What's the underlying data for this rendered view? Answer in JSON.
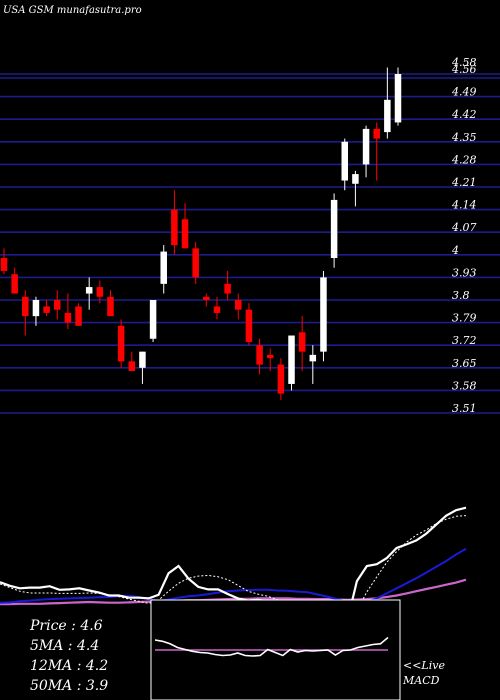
{
  "chart_data": {
    "type": "candlestick",
    "title": "USA GSM munafasutra.pro",
    "price_ticks": [
      4.58,
      4.56,
      4.49,
      4.42,
      4.35,
      4.28,
      4.21,
      4.14,
      4.07,
      4,
      3.93,
      3.8,
      3.79,
      3.72,
      3.65,
      3.58,
      3.51
    ],
    "candles": [
      {
        "open": 3.99,
        "high": 4.02,
        "low": 3.94,
        "close": 3.95
      },
      {
        "open": 3.94,
        "high": 3.96,
        "low": 3.88,
        "close": 3.88
      },
      {
        "open": 3.87,
        "high": 3.89,
        "low": 3.75,
        "close": 3.81
      },
      {
        "open": 3.81,
        "high": 3.87,
        "low": 3.78,
        "close": 3.86
      },
      {
        "open": 3.84,
        "high": 3.86,
        "low": 3.81,
        "close": 3.82
      },
      {
        "open": 3.86,
        "high": 3.89,
        "low": 3.8,
        "close": 3.83
      },
      {
        "open": 3.82,
        "high": 3.88,
        "low": 3.77,
        "close": 3.79
      },
      {
        "open": 3.84,
        "high": 3.85,
        "low": 3.78,
        "close": 3.78
      },
      {
        "open": 3.88,
        "high": 3.93,
        "low": 3.83,
        "close": 3.9
      },
      {
        "open": 3.9,
        "high": 3.92,
        "low": 3.85,
        "close": 3.87
      },
      {
        "open": 3.87,
        "high": 3.89,
        "low": 3.82,
        "close": 3.81
      },
      {
        "open": 3.78,
        "high": 3.8,
        "low": 3.65,
        "close": 3.67
      },
      {
        "open": 3.67,
        "high": 3.7,
        "low": 3.64,
        "close": 3.64
      },
      {
        "open": 3.65,
        "high": 3.7,
        "low": 3.6,
        "close": 3.7
      },
      {
        "open": 3.74,
        "high": 3.86,
        "low": 3.73,
        "close": 3.86
      },
      {
        "open": 3.91,
        "high": 4.03,
        "low": 3.88,
        "close": 4.01
      },
      {
        "open": 4.14,
        "high": 4.2,
        "low": 4.0,
        "close": 4.03
      },
      {
        "open": 4.11,
        "high": 4.16,
        "low": 4.02,
        "close": 4.02
      },
      {
        "open": 4.02,
        "high": 4.04,
        "low": 3.91,
        "close": 3.93
      },
      {
        "open": 3.87,
        "high": 3.88,
        "low": 3.84,
        "close": 3.86
      },
      {
        "open": 3.84,
        "high": 3.87,
        "low": 3.8,
        "close": 3.82
      },
      {
        "open": 3.91,
        "high": 3.95,
        "low": 3.86,
        "close": 3.88
      },
      {
        "open": 3.86,
        "high": 3.88,
        "low": 3.8,
        "close": 3.83
      },
      {
        "open": 3.83,
        "high": 3.85,
        "low": 3.72,
        "close": 3.73
      },
      {
        "open": 3.72,
        "high": 3.74,
        "low": 3.63,
        "close": 3.66
      },
      {
        "open": 3.69,
        "high": 3.71,
        "low": 3.64,
        "close": 3.68
      },
      {
        "open": 3.66,
        "high": 3.68,
        "low": 3.55,
        "close": 3.57
      },
      {
        "open": 3.6,
        "high": 3.75,
        "low": 3.58,
        "close": 3.75
      },
      {
        "open": 3.76,
        "high": 3.81,
        "low": 3.64,
        "close": 3.7
      },
      {
        "open": 3.67,
        "high": 3.72,
        "low": 3.6,
        "close": 3.69
      },
      {
        "open": 3.7,
        "high": 3.95,
        "low": 3.67,
        "close": 3.93
      },
      {
        "open": 3.99,
        "high": 4.19,
        "low": 3.96,
        "close": 4.17
      },
      {
        "open": 4.23,
        "high": 4.36,
        "low": 4.2,
        "close": 4.35
      },
      {
        "open": 4.22,
        "high": 4.26,
        "low": 4.15,
        "close": 4.25
      },
      {
        "open": 4.28,
        "high": 4.4,
        "low": 4.24,
        "close": 4.39
      },
      {
        "open": 4.39,
        "high": 4.41,
        "low": 4.23,
        "close": 4.36
      },
      {
        "open": 4.38,
        "high": 4.58,
        "low": 4.36,
        "close": 4.48
      },
      {
        "open": 4.41,
        "high": 4.58,
        "low": 4.4,
        "close": 4.56
      }
    ],
    "indicators": {
      "price_line": [
        0.55,
        0.45,
        0.38,
        0.4,
        0.4,
        0.44,
        0.34,
        0.35,
        0.38,
        0.32,
        0.26,
        0.18,
        0.18,
        0.12,
        0.12,
        0.1,
        0.2,
        0.8,
        1.0,
        0.65,
        0.42,
        0.35,
        0.35,
        0.22,
        0.1,
        0.04,
        0.06,
        0.02,
        -0.2,
        -0.55,
        -0.88,
        -1.0,
        -0.98,
        -0.84,
        -0.72,
        -0.56,
        0.58,
        1.0,
        1.05,
        1.22,
        1.5,
        1.6,
        1.71,
        1.9,
        2.15,
        2.4,
        2.55,
        2.62
      ],
      "ma_short": [
        0.5,
        0.4,
        0.3,
        0.25,
        0.25,
        0.25,
        0.24,
        0.24,
        0.24,
        0.25,
        0.24,
        0.2,
        0.15,
        0.08,
        0.02,
        -0.04,
        0.05,
        0.3,
        0.52,
        0.66,
        0.72,
        0.74,
        0.7,
        0.62,
        0.46,
        0.3,
        0.22,
        0.16,
        0.06,
        -0.08,
        -0.26,
        -0.44,
        -0.56,
        -0.62,
        -0.6,
        -0.44,
        -0.24,
        0.28,
        0.7,
        1.1,
        1.4,
        1.66,
        1.86,
        2.0,
        2.18,
        2.3,
        2.38,
        2.4
      ],
      "ma_mid": [
        -0.02,
        -0.01,
        0.02,
        0.04,
        0.06,
        0.08,
        0.09,
        0.1,
        0.11,
        0.12,
        0.13,
        0.14,
        0.16,
        0.17,
        0.14,
        0.08,
        0.03,
        0.07,
        0.12,
        0.16,
        0.18,
        0.22,
        0.26,
        0.3,
        0.32,
        0.33,
        0.34,
        0.34,
        0.32,
        0.31,
        0.29,
        0.27,
        0.21,
        0.15,
        0.08,
        0.02,
        -0.02,
        0.0,
        0.1,
        0.24,
        0.38,
        0.52,
        0.66,
        0.82,
        0.98,
        1.14,
        1.32,
        1.48
      ],
      "ma_long": [
        -0.06,
        -0.06,
        -0.05,
        -0.05,
        -0.05,
        -0.04,
        -0.03,
        -0.02,
        -0.01,
        0.0,
        -0.01,
        -0.02,
        -0.02,
        -0.01,
        0.0,
        0.01,
        0.02,
        0.03,
        0.04,
        0.05,
        0.05,
        0.06,
        0.07,
        0.08,
        0.09,
        0.09,
        0.1,
        0.1,
        0.1,
        0.1,
        0.09,
        0.09,
        0.08,
        0.08,
        0.07,
        0.06,
        0.07,
        0.08,
        0.1,
        0.14,
        0.18,
        0.24,
        0.3,
        0.36,
        0.42,
        0.48,
        0.54,
        0.62
      ],
      "macd_line": [
        0.4,
        0.35,
        0.25,
        0.1,
        0.02,
        -0.05,
        -0.1,
        -0.12,
        -0.18,
        -0.22,
        -0.2,
        -0.12,
        -0.22,
        -0.24,
        -0.22,
        0.02,
        -0.1,
        -0.22,
        0.02,
        -0.08,
        -0.02,
        -0.04,
        -0.02,
        0.0,
        -0.2,
        -0.02,
        0.0,
        0.1,
        0.16,
        0.22,
        0.25,
        0.5
      ]
    },
    "info": {
      "price": "Price  : 4.6",
      "ma5": "5MA : 4.4",
      "ma12": "12MA : 4.2",
      "ma50": "50MA : 3.9"
    },
    "live_macd": {
      "line1": "<<Live",
      "line2": "MACD"
    },
    "colors": {
      "up": "#ffffff",
      "down": "#ff0000",
      "gridline": "#1c1c8e",
      "ma_short": "#ffffff",
      "ma_mid": "#1a1ad6",
      "ma_long": "#cc66cc",
      "text": "#ffffff"
    }
  }
}
